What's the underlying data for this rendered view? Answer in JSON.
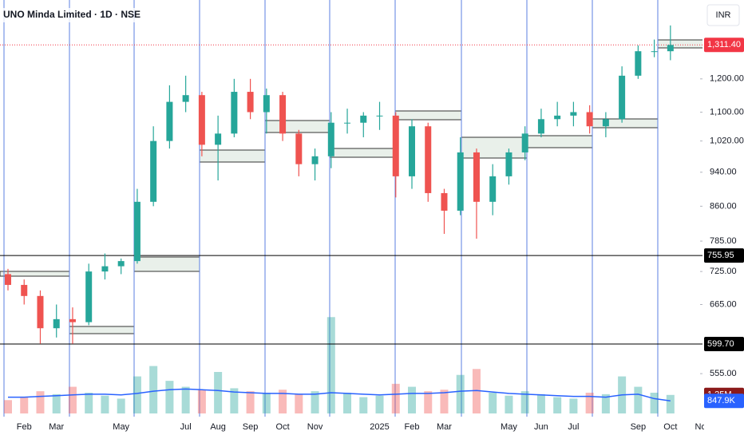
{
  "chart_data": {
    "type": "candlestick",
    "title": "UNO Minda Limited · 1D · NSE",
    "currency": "INR",
    "categories": [
      null,
      "Feb",
      null,
      "Mar",
      null,
      null,
      null,
      "May",
      null,
      null,
      null,
      "Jul",
      null,
      "Aug",
      null,
      "Sep",
      null,
      "Oct",
      null,
      "Nov",
      null,
      null,
      null,
      "2025",
      null,
      "Feb",
      null,
      "Mar",
      null,
      null,
      null,
      "May",
      null,
      "Jun",
      null,
      "Jul",
      null,
      null,
      null,
      "Sep",
      null,
      "Oct",
      null,
      "Nov"
    ],
    "open": [
      720,
      700,
      680,
      625,
      640,
      635,
      725,
      735,
      745,
      870,
      1020,
      1130,
      1150,
      1010,
      1040,
      1160,
      1100,
      1150,
      1040,
      960,
      980,
      1070,
      1070,
      1090,
      1090,
      930,
      1060,
      890,
      850,
      990,
      870,
      930,
      990,
      1040,
      1080,
      1090,
      1100,
      1060,
      1080,
      1210,
      1290,
      1290,
      null,
      null
    ],
    "high": [
      730,
      710,
      690,
      665,
      660,
      740,
      760,
      750,
      900,
      1060,
      1180,
      1210,
      1160,
      1090,
      1200,
      1200,
      1170,
      1160,
      1050,
      1000,
      1100,
      1110,
      1100,
      1130,
      1100,
      1080,
      1070,
      900,
      1030,
      1000,
      960,
      1000,
      1060,
      1110,
      1130,
      1130,
      1120,
      1100,
      1240,
      1310,
      1330,
      1380,
      null,
      null
    ],
    "low": [
      690,
      665,
      600,
      610,
      600,
      630,
      710,
      720,
      740,
      860,
      1000,
      1100,
      980,
      920,
      1030,
      1080,
      1040,
      1020,
      930,
      920,
      950,
      1040,
      1030,
      1050,
      880,
      900,
      870,
      800,
      840,
      790,
      840,
      910,
      970,
      1030,
      1060,
      1060,
      1040,
      1030,
      1070,
      1200,
      1270,
      1260,
      null,
      null
    ],
    "close": [
      700,
      680,
      625,
      640,
      635,
      725,
      735,
      745,
      870,
      1020,
      1130,
      1150,
      1010,
      1040,
      1160,
      1100,
      1150,
      1040,
      960,
      980,
      1070,
      1070,
      1090,
      1090,
      930,
      1060,
      890,
      850,
      990,
      870,
      930,
      990,
      1040,
      1080,
      1090,
      1100,
      1060,
      1080,
      1210,
      1290,
      1290,
      1311.4,
      null,
      null
    ],
    "up_color": "#26a69a",
    "down_color": "#ef5350",
    "log_scale": true,
    "ylim": [
      498,
      1475
    ],
    "yticks": [
      {
        "value": 555,
        "label": "555.00"
      },
      {
        "value": 665,
        "label": "665.00"
      },
      {
        "value": 725,
        "label": "725.00"
      },
      {
        "value": 785,
        "label": "785.00"
      },
      {
        "value": 860,
        "label": "860.00"
      },
      {
        "value": 940,
        "label": "940.00"
      },
      {
        "value": 1020,
        "label": "1,020.00"
      },
      {
        "value": 1100,
        "label": "1,100.00"
      },
      {
        "value": 1200,
        "label": "1,200.00"
      }
    ],
    "price_tags": [
      {
        "value": 1311.4,
        "label": "1,311.40",
        "color": "#f23645",
        "line_style": "dotted"
      },
      {
        "value": 755.95,
        "label": "755.95",
        "color": "#000000",
        "line_style": "solid"
      },
      {
        "value": 599.7,
        "label": "599.70",
        "color": "#000000",
        "line_style": "solid"
      }
    ],
    "volume": {
      "values": [
        900000,
        1100000,
        1500000,
        1300000,
        1800000,
        1400000,
        1200000,
        1000000,
        2500000,
        3200000,
        2200000,
        1800000,
        1600000,
        2800000,
        1700000,
        1500000,
        1400000,
        1600000,
        1300000,
        1500000,
        6500000,
        1400000,
        1100000,
        1200000,
        2000000,
        1800000,
        1500000,
        1600000,
        2600000,
        3000000,
        1400000,
        1200000,
        1500000,
        1300000,
        1100000,
        1000000,
        1400000,
        1300000,
        2500000,
        1800000,
        1400000,
        1250000,
        null,
        null
      ],
      "ma": [
        1100000,
        1100000,
        1150000,
        1200000,
        1250000,
        1300000,
        1300000,
        1250000,
        1350000,
        1500000,
        1600000,
        1650000,
        1600000,
        1550000,
        1450000,
        1400000,
        1350000,
        1350000,
        1300000,
        1300000,
        1400000,
        1350000,
        1300000,
        1250000,
        1300000,
        1350000,
        1350000,
        1400000,
        1500000,
        1550000,
        1450000,
        1350000,
        1300000,
        1250000,
        1200000,
        1150000,
        1150000,
        1100000,
        1250000,
        1300000,
        1000000,
        847900,
        null,
        null
      ],
      "ma_color": "#2962ff",
      "ylim": [
        0,
        7000000
      ],
      "tags": [
        {
          "value": 1250000,
          "label": "1.25M",
          "color": "#8b1a1a"
        },
        {
          "value": 847900,
          "label": "847.9K",
          "color": "#2962ff"
        }
      ]
    }
  }
}
